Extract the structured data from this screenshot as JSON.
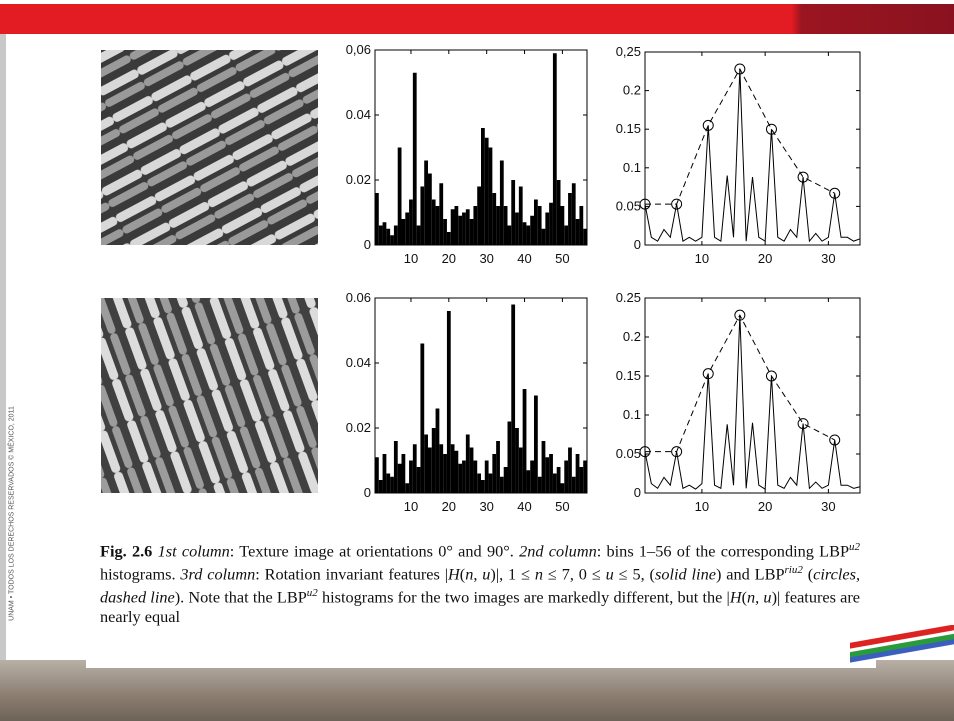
{
  "side_note": "UNAM • TODOS LOS DERECHOS RESERVADOS © MÉXICO, 2011",
  "caption": {
    "parts": [
      "Fig. 2.6",
      "1st column",
      ": Texture image at orientations 0° and 90°. ",
      "2nd column",
      ": bins 1–56 of the corresponding LBP",
      "u2",
      " histograms. ",
      "3rd column",
      ": Rotation invariant features |",
      "H",
      "(",
      "n",
      ", ",
      "u",
      ")|, 1 ≤ ",
      "n",
      " ≤ 7, 0 ≤ ",
      "u",
      " ≤ 5, (",
      "solid line",
      ") and LBP",
      "riu2",
      " (",
      "circles, dashed line",
      "). Note that the LBP",
      "u2",
      " histograms for the two images are markedly different, but the |",
      "H",
      "(",
      "n",
      ", ",
      "u",
      ")| features are nearly equal"
    ]
  },
  "chart_data": [
    {
      "type": "bar",
      "color": "#000000",
      "x": [
        1,
        2,
        3,
        4,
        5,
        6,
        7,
        8,
        9,
        10,
        11,
        12,
        13,
        14,
        15,
        16,
        17,
        18,
        19,
        20,
        21,
        22,
        23,
        24,
        25,
        26,
        27,
        28,
        29,
        30,
        31,
        32,
        33,
        34,
        35,
        36,
        37,
        38,
        39,
        40,
        41,
        42,
        43,
        44,
        45,
        46,
        47,
        48,
        49,
        50,
        51,
        52,
        53,
        54,
        55,
        56
      ],
      "values": [
        0.016,
        0.006,
        0.007,
        0.005,
        0.003,
        0.006,
        0.03,
        0.008,
        0.01,
        0.014,
        0.053,
        0.006,
        0.018,
        0.026,
        0.022,
        0.014,
        0.012,
        0.019,
        0.008,
        0.004,
        0.011,
        0.012,
        0.009,
        0.01,
        0.011,
        0.008,
        0.012,
        0.018,
        0.036,
        0.033,
        0.03,
        0.016,
        0.012,
        0.026,
        0.012,
        0.006,
        0.02,
        0.01,
        0.018,
        0.007,
        0.006,
        0.009,
        0.014,
        0.012,
        0.005,
        0.01,
        0.013,
        0.059,
        0.02,
        0.012,
        0.006,
        0.016,
        0.019,
        0.008,
        0.012,
        0.005
      ],
      "xlim": [
        0.5,
        56.5
      ],
      "xticks": [
        10,
        20,
        30,
        40,
        50
      ],
      "ylim": [
        0,
        0.06
      ],
      "yticks": [
        0,
        0.02,
        0.04,
        {
          "value": 0.06,
          "label": "0,06"
        }
      ]
    },
    {
      "type": "line",
      "color": "#000000",
      "xlim": [
        1,
        35
      ],
      "xticks": [
        10,
        20,
        30
      ],
      "ylim": [
        0,
        0.25
      ],
      "yticks": [
        0,
        0.05,
        0.1,
        0.15,
        0.2,
        {
          "value": 0.25,
          "label": "0,25"
        }
      ],
      "series": [
        {
          "style": "solid",
          "x": [
            1,
            2,
            3,
            4,
            5,
            6,
            7,
            8,
            9,
            10,
            11,
            12,
            13,
            14,
            15,
            16,
            17,
            18,
            19,
            20,
            21,
            22,
            23,
            24,
            25,
            26,
            27,
            28,
            29,
            30,
            31,
            32,
            33,
            34,
            35
          ],
          "values": [
            0.053,
            0.01,
            0.005,
            0.02,
            0.01,
            0.053,
            0.005,
            0.01,
            0.005,
            0.01,
            0.155,
            0.01,
            0.005,
            0.09,
            0.01,
            0.228,
            0.005,
            0.088,
            0.01,
            0.005,
            0.15,
            0.01,
            0.005,
            0.02,
            0.01,
            0.088,
            0.005,
            0.015,
            0.005,
            0.01,
            0.067,
            0.01,
            0.01,
            0.005,
            0.008
          ]
        },
        {
          "style": "dashed",
          "marker": "circle",
          "x": [
            1,
            6,
            11,
            16,
            21,
            26,
            31
          ],
          "values": [
            0.053,
            0.053,
            0.155,
            0.228,
            0.15,
            0.088,
            0.067
          ]
        }
      ]
    },
    {
      "type": "bar",
      "color": "#000000",
      "x": [
        1,
        2,
        3,
        4,
        5,
        6,
        7,
        8,
        9,
        10,
        11,
        12,
        13,
        14,
        15,
        16,
        17,
        18,
        19,
        20,
        21,
        22,
        23,
        24,
        25,
        26,
        27,
        28,
        29,
        30,
        31,
        32,
        33,
        34,
        35,
        36,
        37,
        38,
        39,
        40,
        41,
        42,
        43,
        44,
        45,
        46,
        47,
        48,
        49,
        50,
        51,
        52,
        53,
        54,
        55,
        56
      ],
      "values": [
        0.011,
        0.004,
        0.012,
        0.006,
        0.005,
        0.016,
        0.009,
        0.012,
        0.003,
        0.01,
        0.015,
        0.008,
        0.046,
        0.018,
        0.014,
        0.02,
        0.026,
        0.015,
        0.012,
        0.056,
        0.015,
        0.013,
        0.009,
        0.01,
        0.018,
        0.014,
        0.01,
        0.006,
        0.004,
        0.01,
        0.006,
        0.012,
        0.016,
        0.005,
        0.008,
        0.022,
        0.058,
        0.02,
        0.014,
        0.032,
        0.007,
        0.01,
        0.03,
        0.005,
        0.016,
        0.011,
        0.012,
        0.006,
        0.008,
        0.003,
        0.01,
        0.014,
        0.005,
        0.012,
        0.008,
        0.01
      ],
      "xlim": [
        0.5,
        56.5
      ],
      "xticks": [
        10,
        20,
        30,
        40,
        50
      ],
      "ylim": [
        0,
        0.06
      ],
      "yticks": [
        0,
        0.02,
        0.04,
        0.06
      ]
    },
    {
      "type": "line",
      "color": "#000000",
      "xlim": [
        1,
        35
      ],
      "xticks": [
        10,
        20,
        30
      ],
      "ylim": [
        0,
        0.25
      ],
      "yticks": [
        0,
        0.05,
        0.1,
        0.15,
        0.2,
        0.25
      ],
      "series": [
        {
          "style": "solid",
          "x": [
            1,
            2,
            3,
            4,
            5,
            6,
            7,
            8,
            9,
            10,
            11,
            12,
            13,
            14,
            15,
            16,
            17,
            18,
            19,
            20,
            21,
            22,
            23,
            24,
            25,
            26,
            27,
            28,
            29,
            30,
            31,
            32,
            33,
            34,
            35
          ],
          "values": [
            0.053,
            0.012,
            0.006,
            0.02,
            0.01,
            0.053,
            0.006,
            0.01,
            0.005,
            0.012,
            0.153,
            0.01,
            0.006,
            0.088,
            0.01,
            0.228,
            0.006,
            0.09,
            0.01,
            0.005,
            0.15,
            0.01,
            0.006,
            0.02,
            0.01,
            0.089,
            0.006,
            0.014,
            0.006,
            0.01,
            0.068,
            0.01,
            0.01,
            0.006,
            0.008
          ]
        },
        {
          "style": "dashed",
          "marker": "circle",
          "x": [
            1,
            6,
            11,
            16,
            21,
            26,
            31
          ],
          "values": [
            0.053,
            0.053,
            0.153,
            0.228,
            0.15,
            0.089,
            0.068
          ]
        }
      ]
    }
  ]
}
